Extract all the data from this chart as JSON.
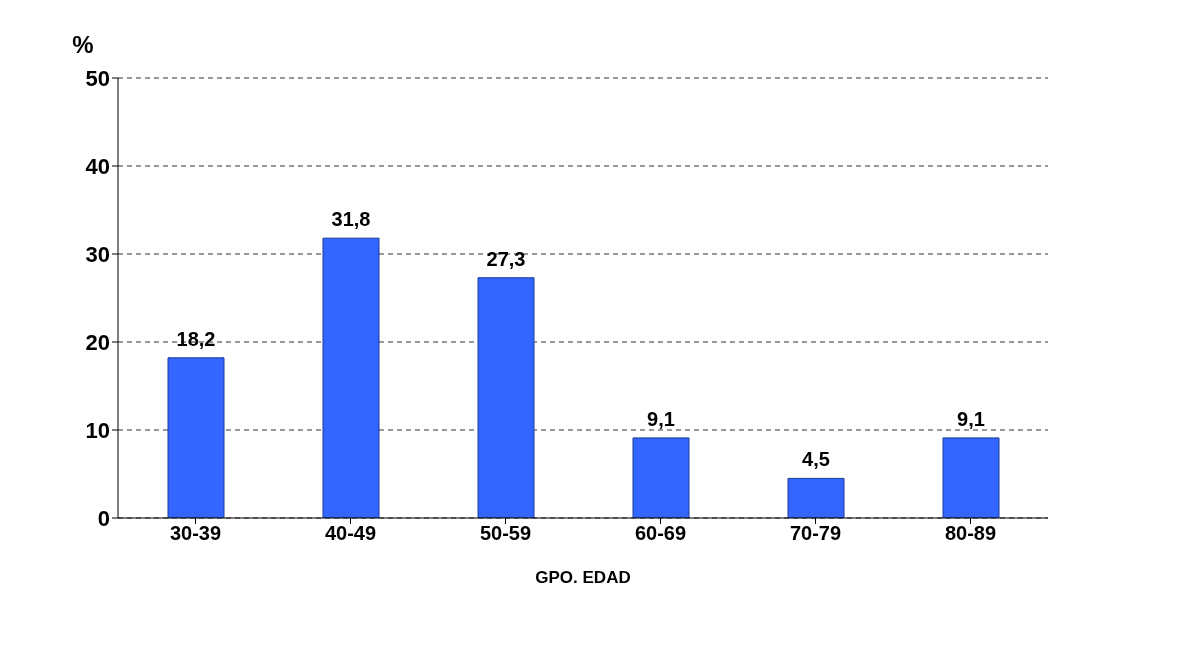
{
  "chart_data": {
    "type": "bar",
    "xlabel": "GPO. EDAD",
    "ylabel": "%",
    "categories": [
      "30-39",
      "40-49",
      "50-59",
      "60-69",
      "70-79",
      "80-89"
    ],
    "values": [
      18.2,
      31.8,
      27.3,
      9.1,
      4.5,
      9.1
    ],
    "value_labels": [
      "18,2",
      "31,8",
      "27,3",
      "9,1",
      "4,5",
      "9,1"
    ],
    "color": "#3366ff",
    "ylim": [
      0,
      50
    ],
    "yticks": [
      0,
      10,
      20,
      30,
      40,
      50
    ],
    "grid": "y"
  }
}
